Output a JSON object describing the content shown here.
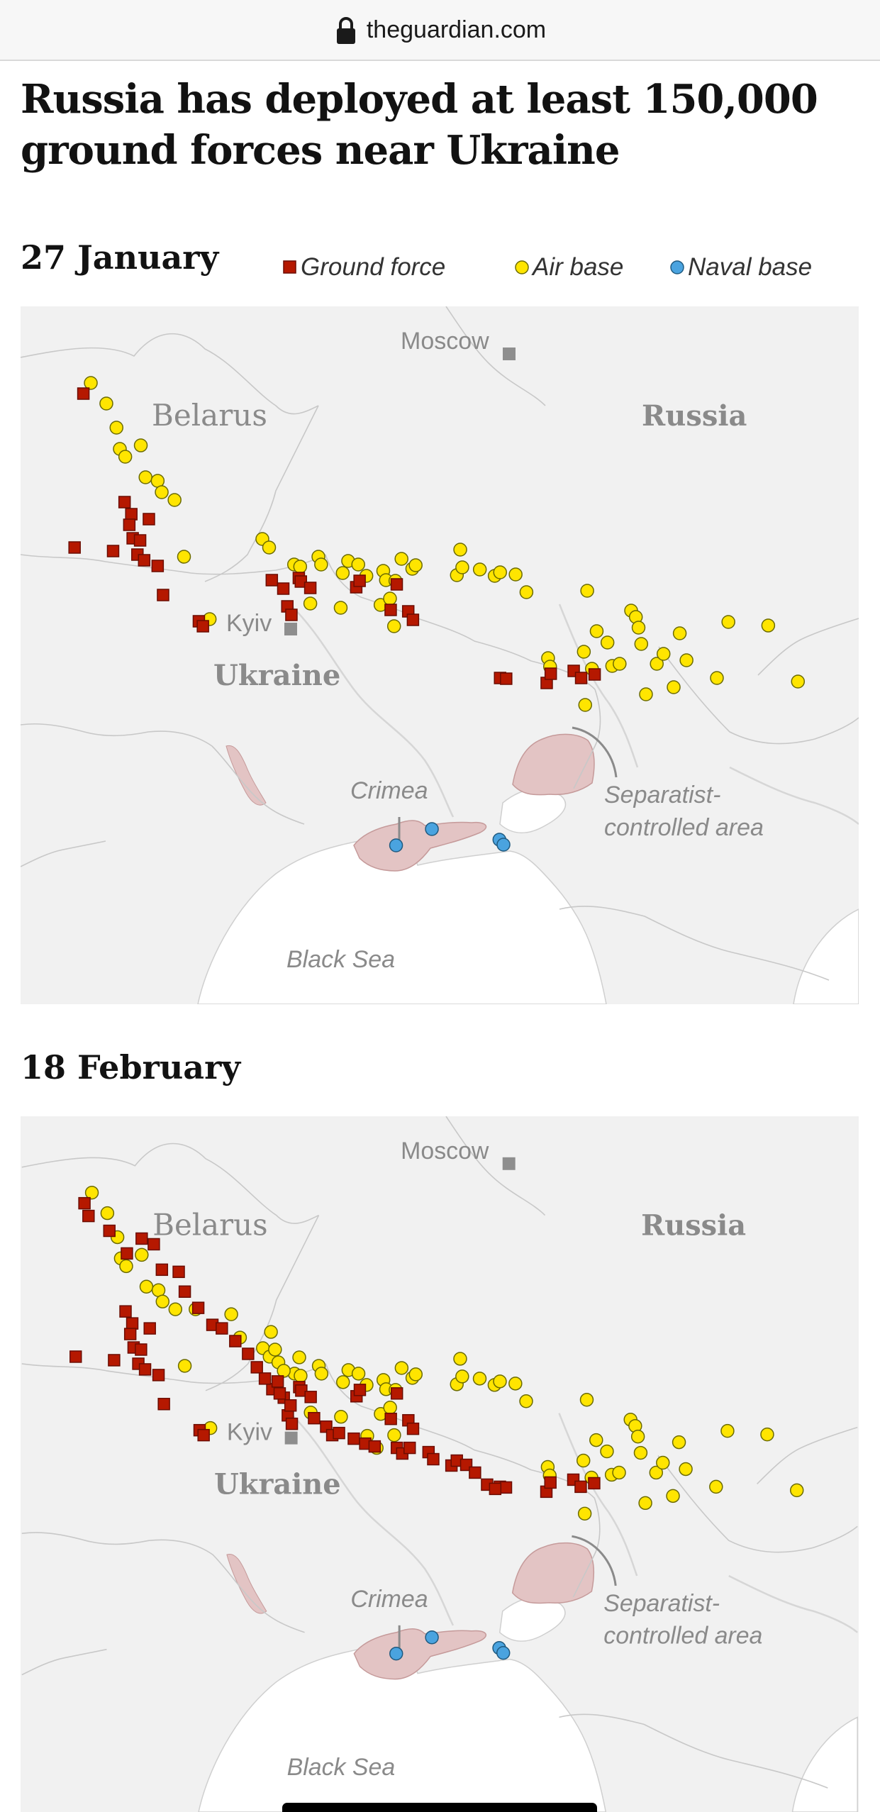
{
  "browser": {
    "domain": "theguardian.com",
    "lock_icon": "lock-icon"
  },
  "article": {
    "headline": "Russia has deployed at least 150,000 ground forces near Ukraine"
  },
  "legend": [
    {
      "label": "Ground force",
      "symbol": "square",
      "color": "#b51800"
    },
    {
      "label": "Air base",
      "symbol": "circle",
      "color": "#ffe500"
    },
    {
      "label": "Naval base",
      "symbol": "circle",
      "color": "#4aa3df"
    }
  ],
  "place_labels": {
    "moscow": "Moscow",
    "belarus": "Belarus",
    "russia": "Russia",
    "kyiv": "Kyiv",
    "ukraine": "Ukraine",
    "crimea": "Crimea",
    "separatist": [
      "Separatist-",
      "controlled area"
    ],
    "black_sea": "Black Sea"
  },
  "colors": {
    "ground": "#b51800",
    "air": "#ffe500",
    "naval": "#4aa3df",
    "separatist": "#e3c4c4",
    "land": "#f1f1f1",
    "sea": "#ffffff"
  },
  "maps": [
    {
      "date": "27 January",
      "ground_forces": [
        [
          93,
          123
        ],
        [
          80,
          340
        ],
        [
          137,
          345
        ],
        [
          154,
          276
        ],
        [
          164,
          293
        ],
        [
          161,
          308
        ],
        [
          166,
          327
        ],
        [
          173,
          350
        ],
        [
          177,
          330
        ],
        [
          183,
          358
        ],
        [
          190,
          300
        ],
        [
          203,
          366
        ],
        [
          211,
          407
        ],
        [
          264,
          444
        ],
        [
          270,
          451
        ],
        [
          372,
          386
        ],
        [
          389,
          398
        ],
        [
          395,
          423
        ],
        [
          401,
          435
        ],
        [
          412,
          383
        ],
        [
          415,
          388
        ],
        [
          429,
          397
        ],
        [
          497,
          396
        ],
        [
          502,
          387
        ],
        [
          548,
          428
        ],
        [
          557,
          392
        ],
        [
          574,
          430
        ],
        [
          581,
          442
        ],
        [
          710,
          524
        ],
        [
          719,
          525
        ],
        [
          779,
          531
        ],
        [
          785,
          518
        ],
        [
          819,
          514
        ],
        [
          830,
          524
        ],
        [
          850,
          519
        ]
      ],
      "air_bases": [
        [
          104,
          108
        ],
        [
          127,
          137
        ],
        [
          142,
          171
        ],
        [
          147,
          201
        ],
        [
          155,
          212
        ],
        [
          178,
          196
        ],
        [
          185,
          241
        ],
        [
          203,
          246
        ],
        [
          209,
          262
        ],
        [
          228,
          273
        ],
        [
          242,
          353
        ],
        [
          280,
          441
        ],
        [
          358,
          328
        ],
        [
          368,
          340
        ],
        [
          405,
          364
        ],
        [
          414,
          367
        ],
        [
          429,
          419
        ],
        [
          441,
          353
        ],
        [
          445,
          364
        ],
        [
          474,
          425
        ],
        [
          477,
          376
        ],
        [
          485,
          359
        ],
        [
          500,
          364
        ],
        [
          512,
          380
        ],
        [
          533,
          421
        ],
        [
          537,
          373
        ],
        [
          541,
          386
        ],
        [
          547,
          412
        ],
        [
          553,
          451
        ],
        [
          555,
          387
        ],
        [
          564,
          356
        ],
        [
          580,
          370
        ],
        [
          585,
          365
        ],
        [
          646,
          379
        ],
        [
          651,
          343
        ],
        [
          654,
          368
        ],
        [
          680,
          371
        ],
        [
          702,
          380
        ],
        [
          710,
          375
        ],
        [
          733,
          378
        ],
        [
          749,
          403
        ],
        [
          781,
          496
        ],
        [
          784,
          508
        ],
        [
          834,
          487
        ],
        [
          836,
          562
        ],
        [
          839,
          401
        ],
        [
          846,
          511
        ],
        [
          853,
          458
        ],
        [
          869,
          474
        ],
        [
          876,
          507
        ],
        [
          887,
          504
        ],
        [
          904,
          429
        ],
        [
          911,
          438
        ],
        [
          915,
          453
        ],
        [
          919,
          476
        ],
        [
          926,
          547
        ],
        [
          942,
          504
        ],
        [
          952,
          490
        ],
        [
          967,
          537
        ],
        [
          976,
          461
        ],
        [
          986,
          499
        ],
        [
          1031,
          524
        ],
        [
          1048,
          445
        ],
        [
          1107,
          450
        ],
        [
          1151,
          529
        ]
      ],
      "naval_bases": [
        [
          556,
          760
        ],
        [
          609,
          737
        ],
        [
          709,
          752
        ],
        [
          715,
          759
        ]
      ]
    },
    {
      "date": "18 February",
      "ground_forces": [
        [
          93,
          123
        ],
        [
          80,
          340
        ],
        [
          137,
          345
        ],
        [
          154,
          276
        ],
        [
          164,
          293
        ],
        [
          161,
          308
        ],
        [
          166,
          327
        ],
        [
          173,
          350
        ],
        [
          177,
          330
        ],
        [
          183,
          358
        ],
        [
          190,
          300
        ],
        [
          203,
          366
        ],
        [
          211,
          407
        ],
        [
          264,
          444
        ],
        [
          270,
          451
        ],
        [
          372,
          386
        ],
        [
          389,
          398
        ],
        [
          395,
          423
        ],
        [
          401,
          435
        ],
        [
          412,
          383
        ],
        [
          415,
          388
        ],
        [
          429,
          397
        ],
        [
          497,
          396
        ],
        [
          502,
          387
        ],
        [
          548,
          428
        ],
        [
          557,
          392
        ],
        [
          574,
          430
        ],
        [
          581,
          442
        ],
        [
          710,
          524
        ],
        [
          719,
          525
        ],
        [
          779,
          531
        ],
        [
          785,
          518
        ],
        [
          819,
          514
        ],
        [
          830,
          524
        ],
        [
          850,
          519
        ],
        [
          99,
          141
        ],
        [
          130,
          162
        ],
        [
          156,
          194
        ],
        [
          178,
          173
        ],
        [
          196,
          181
        ],
        [
          208,
          217
        ],
        [
          233,
          220
        ],
        [
          242,
          248
        ],
        [
          262,
          271
        ],
        [
          283,
          295
        ],
        [
          297,
          300
        ],
        [
          317,
          318
        ],
        [
          336,
          336
        ],
        [
          349,
          355
        ],
        [
          361,
          371
        ],
        [
          380,
          375
        ],
        [
          383,
          392
        ],
        [
          399,
          409
        ],
        [
          434,
          427
        ],
        [
          452,
          439
        ],
        [
          461,
          451
        ],
        [
          471,
          448
        ],
        [
          493,
          456
        ],
        [
          510,
          463
        ],
        [
          524,
          467
        ],
        [
          557,
          469
        ],
        [
          565,
          477
        ],
        [
          576,
          469
        ],
        [
          604,
          475
        ],
        [
          611,
          485
        ],
        [
          638,
          494
        ],
        [
          646,
          487
        ],
        [
          660,
          493
        ],
        [
          673,
          504
        ],
        [
          691,
          521
        ],
        [
          703,
          527
        ]
      ],
      "air_bases": [
        [
          104,
          108
        ],
        [
          127,
          137
        ],
        [
          142,
          171
        ],
        [
          147,
          201
        ],
        [
          155,
          212
        ],
        [
          178,
          196
        ],
        [
          185,
          241
        ],
        [
          203,
          246
        ],
        [
          209,
          262
        ],
        [
          228,
          273
        ],
        [
          242,
          353
        ],
        [
          280,
          441
        ],
        [
          358,
          328
        ],
        [
          368,
          340
        ],
        [
          405,
          364
        ],
        [
          414,
          367
        ],
        [
          429,
          419
        ],
        [
          441,
          353
        ],
        [
          445,
          364
        ],
        [
          474,
          425
        ],
        [
          477,
          376
        ],
        [
          485,
          359
        ],
        [
          500,
          364
        ],
        [
          512,
          380
        ],
        [
          533,
          421
        ],
        [
          537,
          373
        ],
        [
          541,
          386
        ],
        [
          547,
          412
        ],
        [
          553,
          451
        ],
        [
          555,
          387
        ],
        [
          564,
          356
        ],
        [
          580,
          370
        ],
        [
          585,
          365
        ],
        [
          646,
          379
        ],
        [
          651,
          343
        ],
        [
          654,
          368
        ],
        [
          680,
          371
        ],
        [
          702,
          380
        ],
        [
          710,
          375
        ],
        [
          733,
          378
        ],
        [
          749,
          403
        ],
        [
          781,
          496
        ],
        [
          784,
          508
        ],
        [
          834,
          487
        ],
        [
          836,
          562
        ],
        [
          839,
          401
        ],
        [
          846,
          511
        ],
        [
          853,
          458
        ],
        [
          869,
          474
        ],
        [
          876,
          507
        ],
        [
          887,
          504
        ],
        [
          904,
          429
        ],
        [
          911,
          438
        ],
        [
          915,
          453
        ],
        [
          919,
          476
        ],
        [
          926,
          547
        ],
        [
          942,
          504
        ],
        [
          952,
          490
        ],
        [
          967,
          537
        ],
        [
          976,
          461
        ],
        [
          986,
          499
        ],
        [
          1031,
          524
        ],
        [
          1048,
          445
        ],
        [
          1107,
          450
        ],
        [
          1151,
          529
        ],
        [
          258,
          273
        ],
        [
          311,
          280
        ],
        [
          324,
          313
        ],
        [
          370,
          305
        ],
        [
          376,
          330
        ],
        [
          381,
          348
        ],
        [
          389,
          360
        ],
        [
          412,
          341
        ],
        [
          513,
          452
        ],
        [
          527,
          469
        ]
      ],
      "naval_bases": [
        [
          556,
          760
        ],
        [
          609,
          737
        ],
        [
          709,
          752
        ],
        [
          715,
          759
        ]
      ]
    }
  ]
}
